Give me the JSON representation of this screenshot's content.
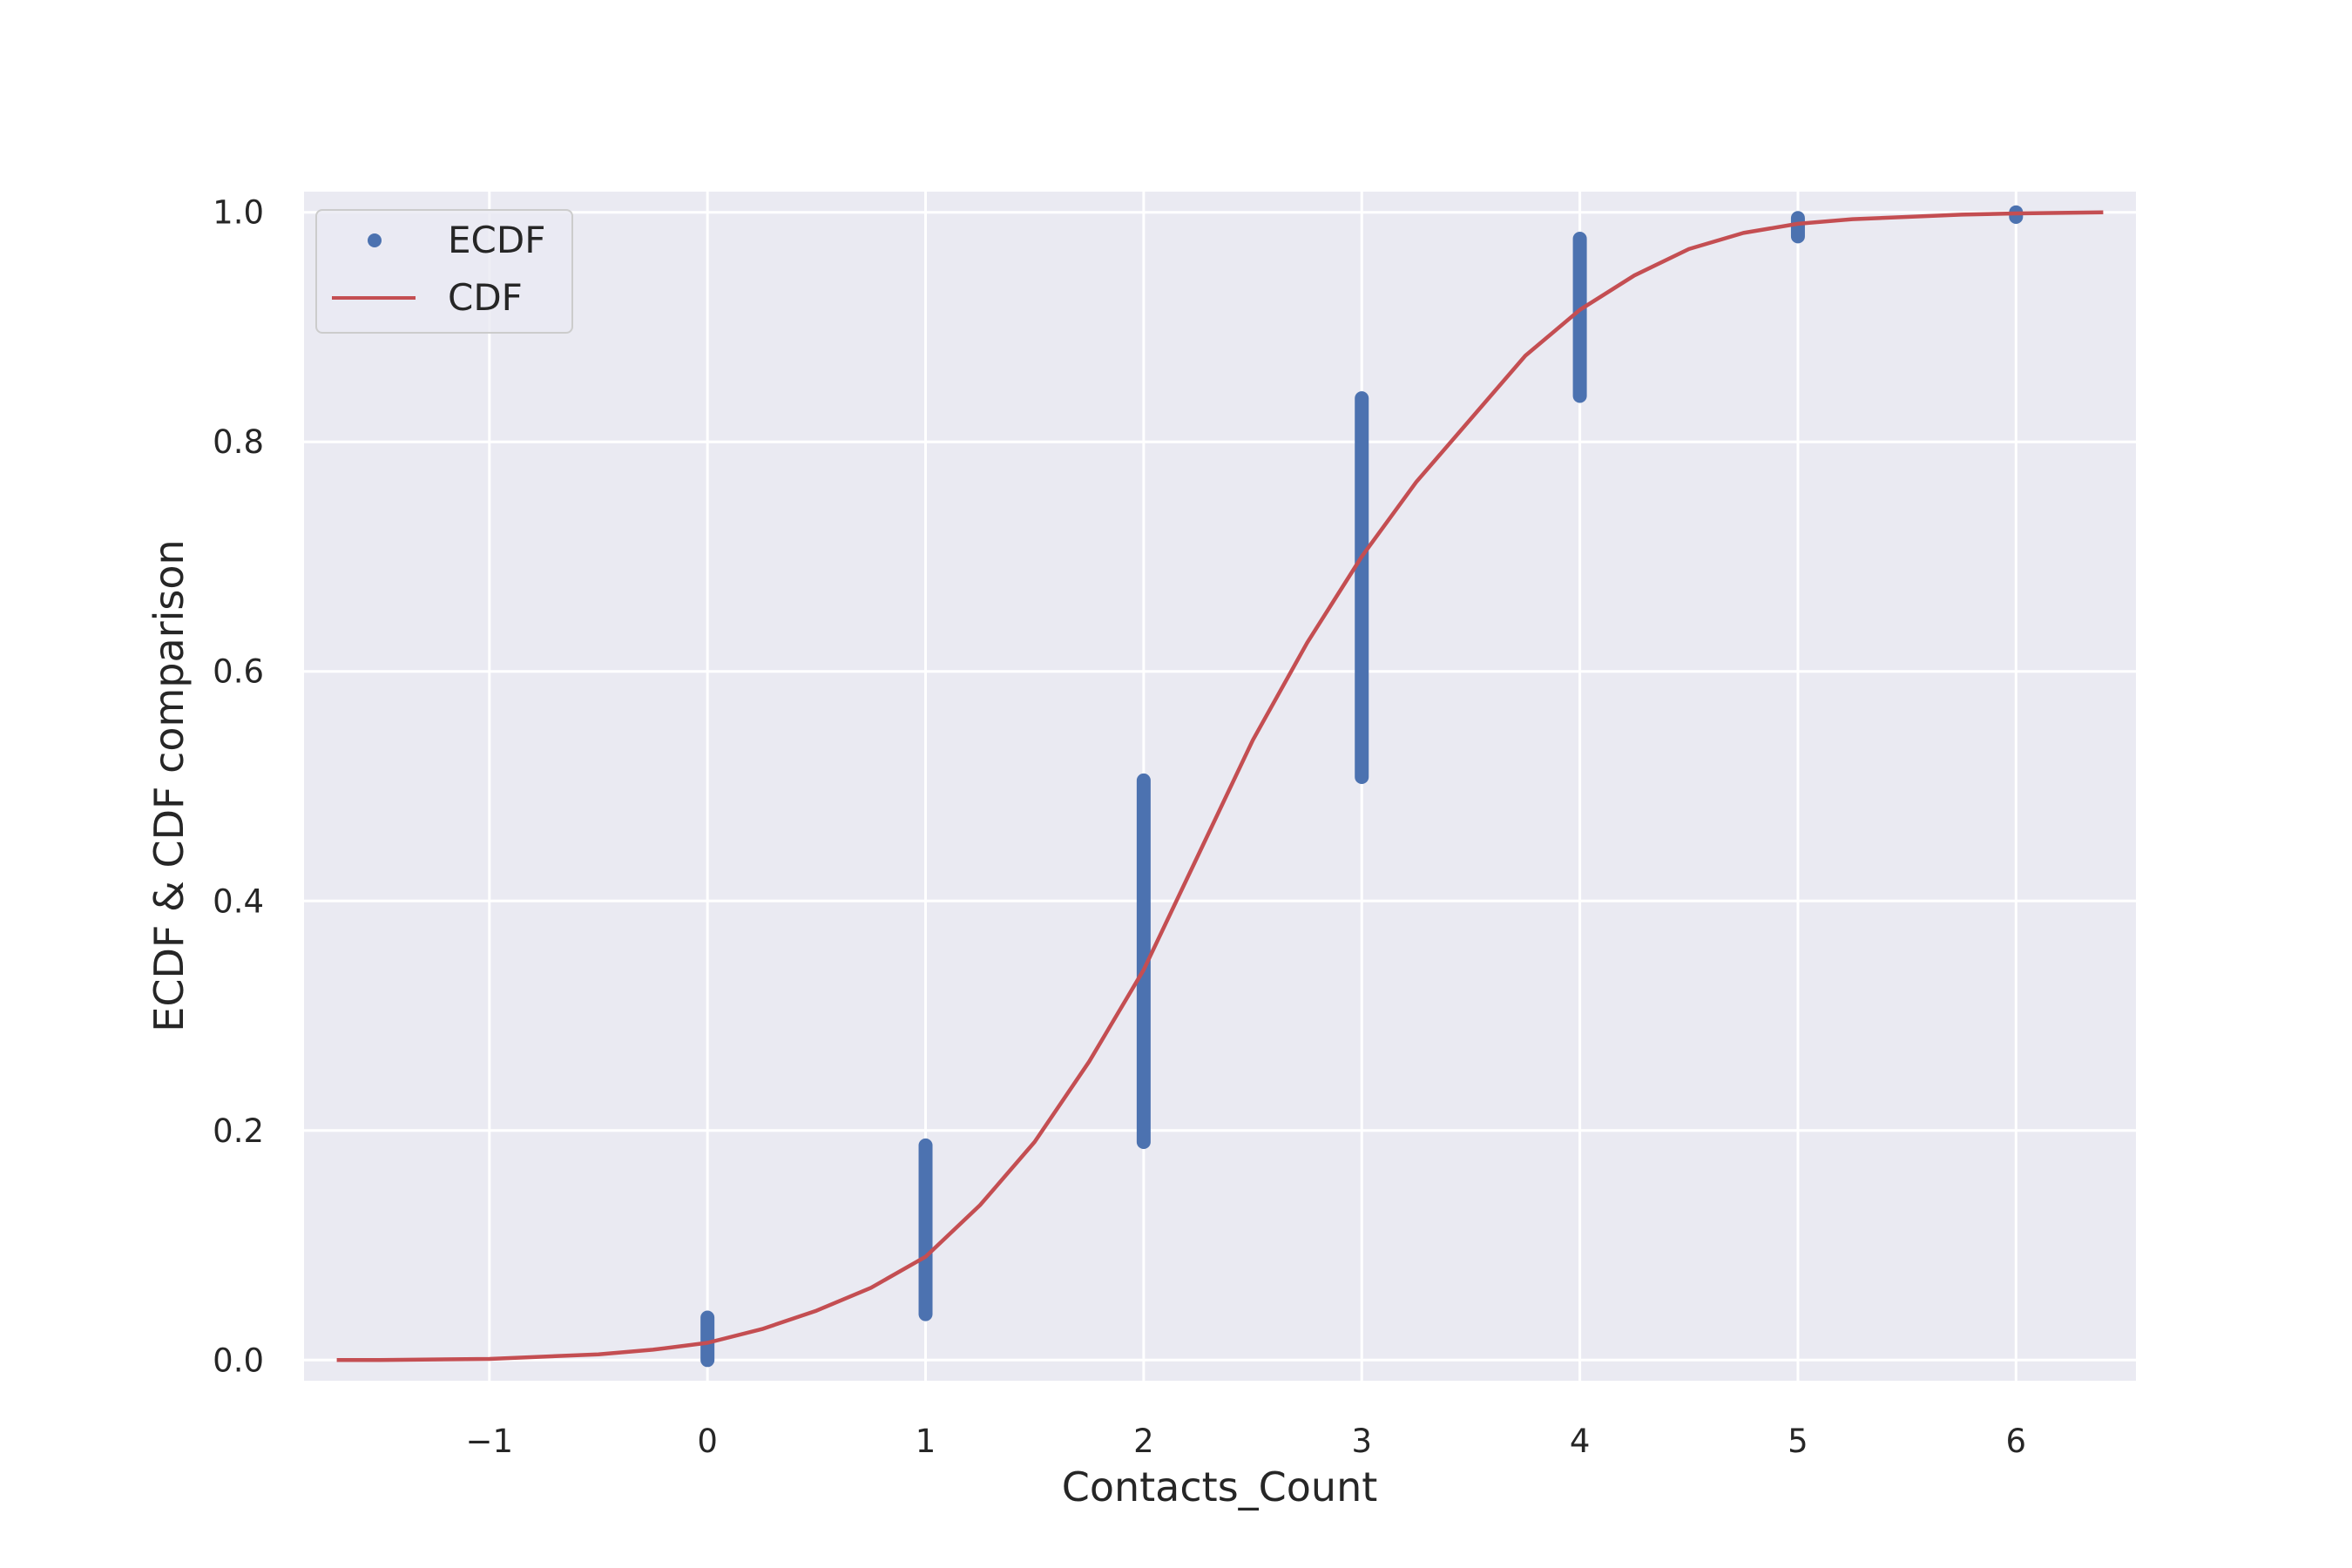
{
  "chart_data": {
    "type": "scatter",
    "xlabel": "Contacts_Count",
    "ylabel": "ECDF & CDF comparison",
    "xlim": [
      -1.85,
      6.55
    ],
    "ylim": [
      -0.018,
      1.018
    ],
    "xticks": [
      -1,
      0,
      1,
      2,
      3,
      4,
      5,
      6
    ],
    "xtick_labels": [
      "−1",
      "0",
      "1",
      "2",
      "3",
      "4",
      "5",
      "6"
    ],
    "yticks": [
      0.0,
      0.2,
      0.4,
      0.6,
      0.8,
      1.0
    ],
    "ytick_labels": [
      "0.0",
      "0.2",
      "0.4",
      "0.6",
      "0.8",
      "1.0"
    ],
    "grid": true,
    "legend": {
      "location": "upper-left",
      "entries": [
        {
          "label": "ECDF",
          "marker": "dot",
          "color": "#4c72b0"
        },
        {
          "label": "CDF",
          "marker": "line",
          "color": "#c44e52"
        }
      ]
    },
    "series": [
      {
        "name": "ECDF",
        "kind": "points",
        "color": "#4c72b0",
        "points": [
          {
            "x": 0,
            "y_range": [
              0.0,
              0.037
            ]
          },
          {
            "x": 1,
            "y_range": [
              0.04,
              0.187
            ]
          },
          {
            "x": 2,
            "y_range": [
              0.19,
              0.505
            ]
          },
          {
            "x": 3,
            "y_range": [
              0.508,
              0.838
            ]
          },
          {
            "x": 4,
            "y_range": [
              0.84,
              0.977
            ]
          },
          {
            "x": 5,
            "y_range": [
              0.979,
              0.995
            ]
          },
          {
            "x": 6,
            "y_range": [
              0.996,
              1.0
            ]
          }
        ]
      },
      {
        "name": "CDF",
        "kind": "line",
        "color": "#c44e52",
        "x": [
          -1.7,
          -1.5,
          -1.0,
          -0.5,
          -0.25,
          0.0,
          0.25,
          0.5,
          0.75,
          1.0,
          1.25,
          1.5,
          1.75,
          2.0,
          2.25,
          2.5,
          2.75,
          3.0,
          3.25,
          3.5,
          3.75,
          4.0,
          4.25,
          4.5,
          4.75,
          5.0,
          5.25,
          5.5,
          5.75,
          6.0,
          6.4
        ],
        "y": [
          0.0,
          0.0,
          0.001,
          0.005,
          0.009,
          0.015,
          0.027,
          0.043,
          0.063,
          0.09,
          0.135,
          0.19,
          0.26,
          0.34,
          0.44,
          0.54,
          0.625,
          0.7,
          0.765,
          0.82,
          0.875,
          0.915,
          0.945,
          0.968,
          0.982,
          0.99,
          0.994,
          0.996,
          0.998,
          0.999,
          1.0
        ]
      }
    ]
  }
}
